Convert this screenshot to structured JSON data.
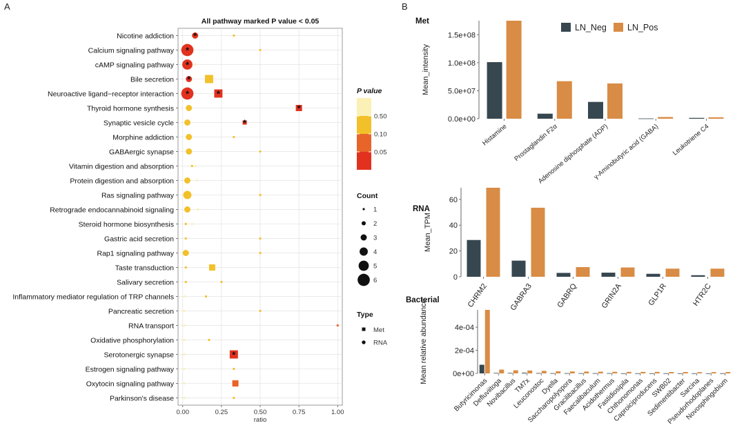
{
  "panels": {
    "a_label": "A",
    "b_label": "B"
  },
  "colors": {
    "met_neg": "#37474f",
    "met_pos": "#d98c45",
    "p_050": "#fbf0b5",
    "p_010": "#f2c12a",
    "p_005": "#e8652a",
    "p_low": "#e2321f",
    "panel_bg": "#ffffff",
    "grid": "#e4e4e4",
    "axis": "#555555"
  },
  "chart_data": [
    {
      "id": "dotplot",
      "type": "scatter",
      "title": "All pathway marked P value < 0.05",
      "xlabel": "ratio",
      "xlim": [
        -0.03,
        1.03
      ],
      "xticks": [
        "0.00",
        "0.25",
        "0.50",
        "0.75",
        "1.00"
      ],
      "xtick_values": [
        0,
        0.25,
        0.5,
        0.75,
        1.0
      ],
      "pathways": [
        "Nicotine addiction",
        "Calcium signaling pathway",
        "cAMP signaling pathway",
        "Bile secretion",
        "Neuroactive ligand−receptor interaction",
        "Thyroid hormone synthesis",
        "Synaptic vesicle cycle",
        "Morphine addiction",
        "GABAergic synapse",
        "Vitamin digestion and absorption",
        "Protein digestion and absorption",
        "Ras signaling pathway",
        "Retrograde endocannabinoid signaling",
        "Steroid hormone biosynthesis",
        "Gastric acid secretion",
        "Rap1 signaling pathway",
        "Taste transduction",
        "Salivary secretion",
        "Inflammatory mediator regulation of TRP channels",
        "Pancreatic secretion",
        "RNA transport",
        "Oxidative phosphorylation",
        "Serotonergic synapse",
        "Estrogen signaling pathway",
        "Oxytocin signaling pathway",
        "Parkinson's disease"
      ],
      "points": [
        {
          "pathway": 0,
          "type": "RNA",
          "ratio": 0.08,
          "count": 3,
          "p": "low",
          "star": true
        },
        {
          "pathway": 0,
          "type": "RNA",
          "ratio": 0.33,
          "count": 1,
          "p": "0.10",
          "star": false
        },
        {
          "pathway": 1,
          "type": "RNA",
          "ratio": 0.03,
          "count": 6,
          "p": "low",
          "star": true
        },
        {
          "pathway": 1,
          "type": "RNA",
          "ratio": 0.5,
          "count": 1,
          "p": "0.10",
          "star": false
        },
        {
          "pathway": 2,
          "type": "RNA",
          "ratio": 0.03,
          "count": 5,
          "p": "low",
          "star": true
        },
        {
          "pathway": 2,
          "type": "RNA",
          "ratio": 0.08,
          "count": 1,
          "p": "0.50",
          "star": false
        },
        {
          "pathway": 3,
          "type": "RNA",
          "ratio": 0.04,
          "count": 3,
          "p": "low",
          "star": true
        },
        {
          "pathway": 3,
          "type": "Met",
          "ratio": 0.17,
          "count": 4,
          "p": "0.10",
          "star": false
        },
        {
          "pathway": 4,
          "type": "RNA",
          "ratio": 0.03,
          "count": 6,
          "p": "low",
          "star": true
        },
        {
          "pathway": 4,
          "type": "Met",
          "ratio": 0.23,
          "count": 4,
          "p": "low",
          "star": true
        },
        {
          "pathway": 5,
          "type": "RNA",
          "ratio": 0.04,
          "count": 3,
          "p": "0.10",
          "star": false
        },
        {
          "pathway": 5,
          "type": "Met",
          "ratio": 0.75,
          "count": 3,
          "p": "low",
          "star": true
        },
        {
          "pathway": 6,
          "type": "RNA",
          "ratio": 0.03,
          "count": 3,
          "p": "0.10",
          "star": false
        },
        {
          "pathway": 6,
          "type": "Met",
          "ratio": 0.4,
          "count": 2,
          "p": "low",
          "star": true
        },
        {
          "pathway": 7,
          "type": "RNA",
          "ratio": 0.04,
          "count": 3,
          "p": "0.10",
          "star": false
        },
        {
          "pathway": 7,
          "type": "RNA",
          "ratio": 0.33,
          "count": 1,
          "p": "0.10",
          "star": false
        },
        {
          "pathway": 8,
          "type": "RNA",
          "ratio": 0.04,
          "count": 3,
          "p": "0.10",
          "star": false
        },
        {
          "pathway": 8,
          "type": "RNA",
          "ratio": 0.5,
          "count": 1,
          "p": "0.10",
          "star": false
        },
        {
          "pathway": 9,
          "type": "RNA",
          "ratio": 0.06,
          "count": 1,
          "p": "0.10",
          "star": false
        },
        {
          "pathway": 9,
          "type": "RNA",
          "ratio": 0.08,
          "count": 1,
          "p": "0.50",
          "star": false
        },
        {
          "pathway": 10,
          "type": "RNA",
          "ratio": 0.03,
          "count": 3,
          "p": "0.10",
          "star": false
        },
        {
          "pathway": 10,
          "type": "RNA",
          "ratio": 0.09,
          "count": 1,
          "p": "0.50",
          "star": false
        },
        {
          "pathway": 11,
          "type": "RNA",
          "ratio": 0.03,
          "count": 4,
          "p": "0.10",
          "star": false
        },
        {
          "pathway": 11,
          "type": "RNA",
          "ratio": 0.5,
          "count": 1,
          "p": "0.10",
          "star": false
        },
        {
          "pathway": 12,
          "type": "RNA",
          "ratio": 0.03,
          "count": 3,
          "p": "0.10",
          "star": false
        },
        {
          "pathway": 12,
          "type": "RNA",
          "ratio": 0.1,
          "count": 1,
          "p": "0.50",
          "star": false
        },
        {
          "pathway": 13,
          "type": "RNA",
          "ratio": 0.02,
          "count": 1,
          "p": "0.10",
          "star": false
        },
        {
          "pathway": 13,
          "type": "RNA",
          "ratio": 0.06,
          "count": 1,
          "p": "0.50",
          "star": false
        },
        {
          "pathway": 14,
          "type": "RNA",
          "ratio": 0.02,
          "count": 1,
          "p": "0.10",
          "star": false
        },
        {
          "pathway": 14,
          "type": "RNA",
          "ratio": 0.5,
          "count": 1,
          "p": "0.10",
          "star": false
        },
        {
          "pathway": 15,
          "type": "RNA",
          "ratio": 0.02,
          "count": 3,
          "p": "0.10",
          "star": false
        },
        {
          "pathway": 15,
          "type": "RNA",
          "ratio": 0.5,
          "count": 1,
          "p": "0.10",
          "star": false
        },
        {
          "pathway": 16,
          "type": "RNA",
          "ratio": 0.02,
          "count": 1,
          "p": "0.10",
          "star": false
        },
        {
          "pathway": 16,
          "type": "Met",
          "ratio": 0.19,
          "count": 3,
          "p": "0.10",
          "star": false
        },
        {
          "pathway": 17,
          "type": "RNA",
          "ratio": 0.02,
          "count": 1,
          "p": "0.10",
          "star": false
        },
        {
          "pathway": 17,
          "type": "RNA",
          "ratio": 0.25,
          "count": 1,
          "p": "0.10",
          "star": false
        },
        {
          "pathway": 18,
          "type": "RNA",
          "ratio": 0.01,
          "count": 1,
          "p": "0.50",
          "star": false
        },
        {
          "pathway": 18,
          "type": "RNA",
          "ratio": 0.15,
          "count": 1,
          "p": "0.10",
          "star": false
        },
        {
          "pathway": 19,
          "type": "RNA",
          "ratio": 0.01,
          "count": 1,
          "p": "0.50",
          "star": false
        },
        {
          "pathway": 19,
          "type": "RNA",
          "ratio": 0.5,
          "count": 1,
          "p": "0.10",
          "star": false
        },
        {
          "pathway": 20,
          "type": "RNA",
          "ratio": 0.01,
          "count": 1,
          "p": "0.50",
          "star": false
        },
        {
          "pathway": 20,
          "type": "RNA",
          "ratio": 1.0,
          "count": 1,
          "p": "0.05",
          "star": false
        },
        {
          "pathway": 21,
          "type": "RNA",
          "ratio": 0.01,
          "count": 1,
          "p": "0.50",
          "star": false
        },
        {
          "pathway": 21,
          "type": "RNA",
          "ratio": 0.17,
          "count": 1,
          "p": "0.10",
          "star": false
        },
        {
          "pathway": 22,
          "type": "RNA",
          "ratio": 0.01,
          "count": 1,
          "p": "0.50",
          "star": false
        },
        {
          "pathway": 22,
          "type": "Met",
          "ratio": 0.33,
          "count": 4,
          "p": "low",
          "star": true
        },
        {
          "pathway": 23,
          "type": "RNA",
          "ratio": 0.01,
          "count": 1,
          "p": "0.50",
          "star": false
        },
        {
          "pathway": 23,
          "type": "RNA",
          "ratio": 0.33,
          "count": 1,
          "p": "0.10",
          "star": false
        },
        {
          "pathway": 24,
          "type": "RNA",
          "ratio": 0.01,
          "count": 1,
          "p": "0.50",
          "star": false
        },
        {
          "pathway": 24,
          "type": "Met",
          "ratio": 0.34,
          "count": 3,
          "p": "0.05",
          "star": false
        },
        {
          "pathway": 25,
          "type": "RNA",
          "ratio": 0.01,
          "count": 1,
          "p": "0.50",
          "star": false
        },
        {
          "pathway": 25,
          "type": "RNA",
          "ratio": 0.33,
          "count": 1,
          "p": "0.10",
          "star": false
        }
      ],
      "legend_p": {
        "title": "P value",
        "labels": [
          "0.50",
          "0.10",
          "0.05"
        ]
      },
      "legend_count": {
        "title": "Count",
        "labels": [
          "1",
          "2",
          "3",
          "4",
          "5",
          "6"
        ]
      },
      "legend_type": {
        "title": "Type",
        "labels": [
          "Met",
          "RNA"
        ]
      },
      "star_symbol": "*"
    },
    {
      "id": "met",
      "type": "bar",
      "panel_title": "Met",
      "ylabel": "Mean_intensity",
      "ylim": [
        0,
        175000000
      ],
      "yticks": [
        "0.0e+00",
        "5.0e+07",
        "1.0e+08",
        "1.5e+08"
      ],
      "ytick_values": [
        0,
        50000000,
        100000000,
        150000000
      ],
      "categories": [
        "Histamine",
        "Prostaglandin F2α",
        "Adenosine diphosphate (ADP)",
        "γ-Aminobutyric acid (GABA)",
        "Leukotriene C4"
      ],
      "series": [
        {
          "name": "LN_Neg",
          "values": [
            101000000,
            9000000,
            30000000,
            500000,
            1500000
          ]
        },
        {
          "name": "LN_Pos",
          "values": [
            175000000,
            67000000,
            63000000,
            3000000,
            2500000
          ]
        }
      ]
    },
    {
      "id": "rna",
      "type": "bar",
      "panel_title": "RNA",
      "ylabel": "Mean_TPM",
      "ylim": [
        0,
        69
      ],
      "yticks": [
        "0",
        "20",
        "40",
        "60"
      ],
      "ytick_values": [
        0,
        20,
        40,
        60
      ],
      "categories": [
        "CHRM2",
        "GABRA3",
        "GABRQ",
        "GRIN2A",
        "GLP1R",
        "HTR2C"
      ],
      "series": [
        {
          "name": "LN_Neg",
          "values": [
            28.5,
            12.5,
            3,
            3.2,
            2.3,
            1.2
          ]
        },
        {
          "name": "LN_Pos",
          "values": [
            69,
            53.5,
            7.5,
            7.2,
            6.3,
            6.3
          ]
        }
      ]
    },
    {
      "id": "bacterial",
      "type": "bar",
      "panel_title": "Bacterial",
      "ylabel": "Mean  relative  abundance",
      "ylim": [
        0,
        0.00055
      ],
      "yticks": [
        "0e+00",
        "2e-04",
        "4e-04"
      ],
      "ytick_values": [
        0,
        0.0002,
        0.0004
      ],
      "categories": [
        "Butyricimonas",
        "Defluviitoga",
        "Novibacillus",
        "TM7x",
        "Leuconostoc",
        "Dyella",
        "Saccharopolyspora",
        "Gracilibacillus",
        "Faecalibaculum",
        "Acidothermus",
        "Fastidiosipila",
        "Chthonomonas",
        "Caproiciproducens",
        "SWB02",
        "Sedimentibacter",
        "Sarcina",
        "Pseudorhodoplanes",
        "Novosphingobium"
      ],
      "series": [
        {
          "name": "LN_Neg",
          "values": [
            7.5e-05,
            4e-06,
            4e-06,
            6e-06,
            3e-06,
            2e-06,
            2e-06,
            2e-06,
            2e-06,
            2e-06,
            1e-06,
            1e-06,
            1e-06,
            1e-06,
            1e-06,
            1e-06,
            1e-06,
            1e-06
          ]
        },
        {
          "name": "LN_Pos",
          "values": [
            0.00055,
            3.3e-05,
            2.7e-05,
            2.5e-05,
            2.2e-05,
            1.8e-05,
            1.7e-05,
            1.6e-05,
            1.5e-05,
            1.4e-05,
            1.3e-05,
            1.3e-05,
            1.3e-05,
            1.2e-05,
            1.2e-05,
            1.1e-05,
            1.1e-05,
            1.2e-05
          ]
        }
      ]
    }
  ]
}
